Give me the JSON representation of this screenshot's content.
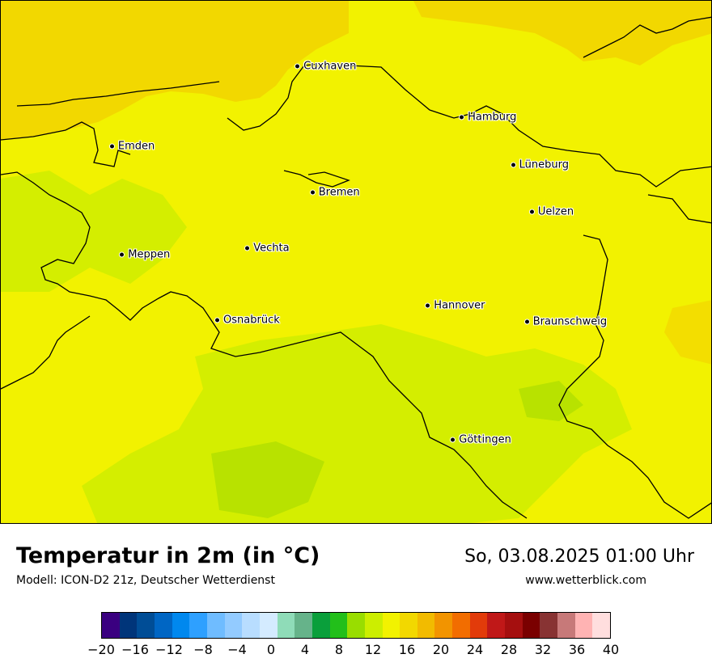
{
  "map": {
    "cities": [
      {
        "name": "Cuxhaven",
        "lon": 8.69,
        "lat": 53.87
      },
      {
        "name": "Hamburg",
        "lon": 10.0,
        "lat": 53.55
      },
      {
        "name": "Emden",
        "lon": 7.21,
        "lat": 53.37
      },
      {
        "name": "Lüneburg",
        "lon": 10.41,
        "lat": 53.25
      },
      {
        "name": "Bremen",
        "lon": 8.81,
        "lat": 53.08
      },
      {
        "name": "Uelzen",
        "lon": 10.56,
        "lat": 52.96
      },
      {
        "name": "Vechta",
        "lon": 8.29,
        "lat": 52.73
      },
      {
        "name": "Meppen",
        "lon": 7.29,
        "lat": 52.69
      },
      {
        "name": "Hannover",
        "lon": 9.73,
        "lat": 52.37
      },
      {
        "name": "Osnabrück",
        "lon": 8.05,
        "lat": 52.28
      },
      {
        "name": "Braunschweig",
        "lon": 10.52,
        "lat": 52.27
      },
      {
        "name": "Göttingen",
        "lon": 9.93,
        "lat": 51.53
      }
    ]
  },
  "header": {
    "title": "Temperatur in 2m (in °C)",
    "model": "Modell: ICON-D2 21z, Deutscher Wetterdienst",
    "datetime": "So, 03.08.2025 01:00 Uhr",
    "website": "www.wetterblick.com"
  },
  "legend": {
    "colors": [
      "#3a0080",
      "#00357a",
      "#004d96",
      "#0066c4",
      "#0088ee",
      "#2ea0ff",
      "#6fbcff",
      "#93cbff",
      "#b8ddff",
      "#d4ebff",
      "#8fdcb8",
      "#66b38a",
      "#0a9f3b",
      "#22bf1a",
      "#99dd00",
      "#ccee00",
      "#f2f200",
      "#f2d800",
      "#f2bb00",
      "#f29400",
      "#f26d00",
      "#e23b0a",
      "#c01818",
      "#a50f0f",
      "#7a0000",
      "#883333",
      "#c77979",
      "#ffb3b3",
      "#ffdede"
    ],
    "ticks": [
      "−20",
      "−16",
      "−12",
      "−8",
      "−4",
      "0",
      "4",
      "8",
      "12",
      "16",
      "20",
      "24",
      "28",
      "32",
      "36",
      "40"
    ]
  }
}
